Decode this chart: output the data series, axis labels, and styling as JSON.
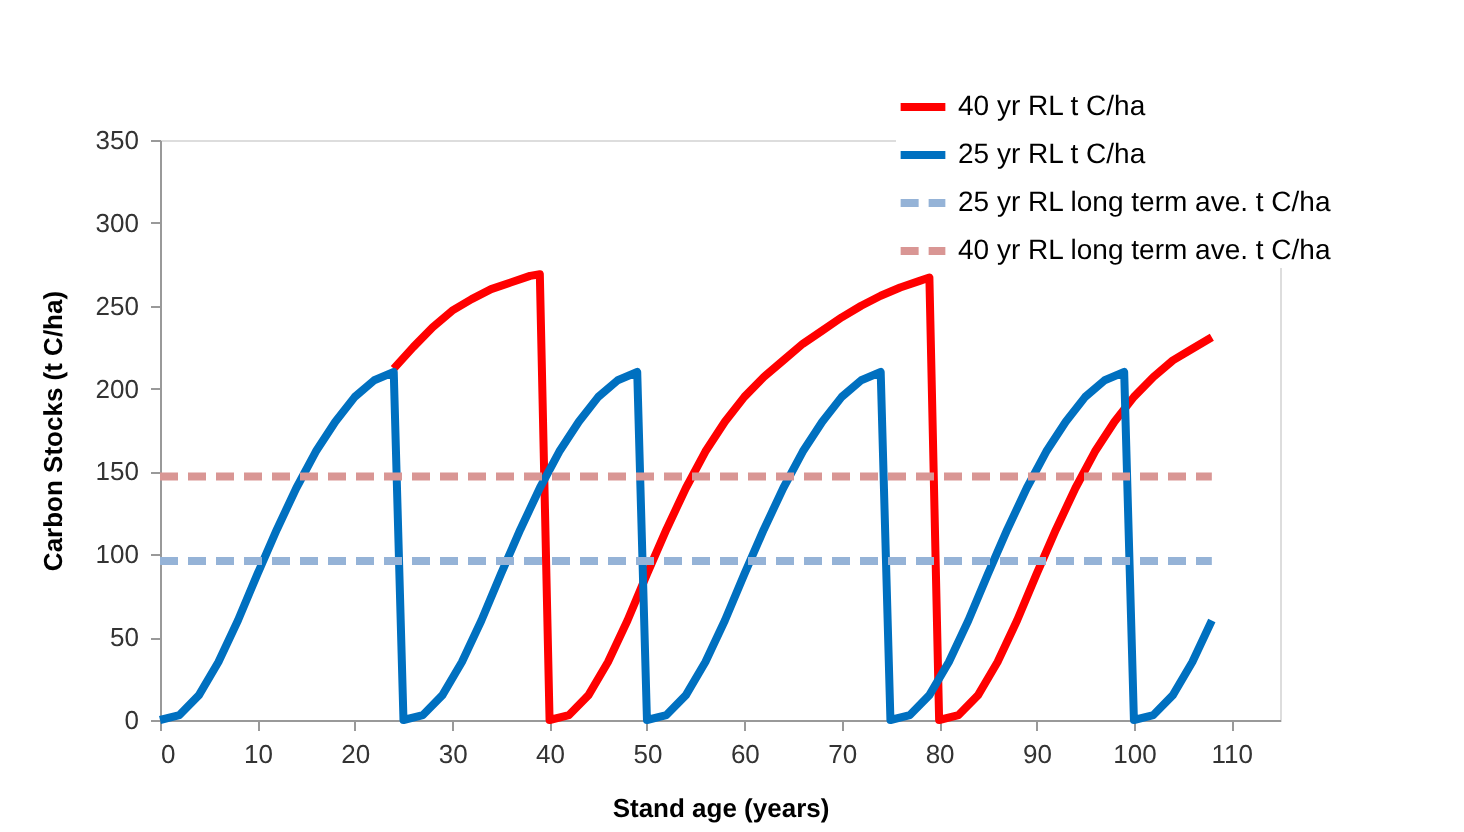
{
  "chart_data": {
    "type": "line",
    "xlabel": "Stand age (years)",
    "ylabel": "Carbon Stocks (t C/ha)",
    "xlim": [
      0,
      115
    ],
    "xticks": [
      0,
      10,
      20,
      30,
      40,
      50,
      60,
      70,
      80,
      90,
      100,
      110
    ],
    "ylim": [
      0,
      350
    ],
    "yticks": [
      0,
      50,
      100,
      150,
      200,
      250,
      300,
      350
    ],
    "grid": false,
    "legend": "top right",
    "marker": "none",
    "series": [
      {
        "name": "40 yr RL t C/ha",
        "color": "#ff0000",
        "line_style": "solid",
        "x": [
          24,
          26,
          28,
          30,
          32,
          34,
          36,
          38,
          39,
          40,
          42,
          44,
          46,
          48,
          50,
          52,
          54,
          56,
          58,
          60,
          62,
          64,
          66,
          68,
          70,
          72,
          74,
          76,
          78,
          79,
          80,
          82,
          84,
          86,
          88,
          90,
          92,
          94,
          96,
          98,
          100,
          102,
          104,
          106,
          108
        ],
        "values": [
          212,
          225,
          237,
          247,
          254,
          260,
          264,
          268,
          269,
          0,
          3,
          15,
          35,
          60,
          88,
          115,
          140,
          162,
          180,
          195,
          207,
          217,
          227,
          235,
          243,
          250,
          256,
          261,
          265,
          267,
          0,
          3,
          15,
          35,
          60,
          88,
          115,
          140,
          162,
          180,
          195,
          207,
          217,
          224,
          231
        ]
      },
      {
        "name": "25 yr RL t C/ha",
        "color": "#0070c0",
        "line_style": "solid",
        "x": [
          0,
          2,
          4,
          6,
          8,
          10,
          12,
          14,
          16,
          18,
          20,
          22,
          24,
          25,
          27,
          29,
          31,
          33,
          35,
          37,
          39,
          41,
          43,
          45,
          47,
          49,
          50,
          52,
          54,
          56,
          58,
          60,
          62,
          64,
          66,
          68,
          70,
          72,
          74,
          75,
          77,
          79,
          81,
          83,
          85,
          87,
          89,
          91,
          93,
          95,
          97,
          99,
          100,
          102,
          104,
          106,
          108
        ],
        "values": [
          0,
          3,
          15,
          35,
          60,
          88,
          115,
          140,
          162,
          180,
          195,
          205,
          210,
          0,
          3,
          15,
          35,
          60,
          88,
          115,
          140,
          162,
          180,
          195,
          205,
          210,
          0,
          3,
          15,
          35,
          60,
          88,
          115,
          140,
          162,
          180,
          195,
          205,
          210,
          0,
          3,
          15,
          35,
          60,
          88,
          115,
          140,
          162,
          180,
          195,
          205,
          210,
          0,
          3,
          15,
          35,
          60
        ]
      },
      {
        "name": "25 yr RL  long term ave. t C/ha",
        "color": "#95b3d7",
        "line_style": "dashed",
        "x": [
          0,
          108
        ],
        "values": [
          96,
          96
        ]
      },
      {
        "name": "40 yr RL long term ave. t C/ha",
        "color": "#d99694",
        "line_style": "dashed",
        "x": [
          0,
          108
        ],
        "values": [
          147,
          147
        ]
      }
    ]
  }
}
